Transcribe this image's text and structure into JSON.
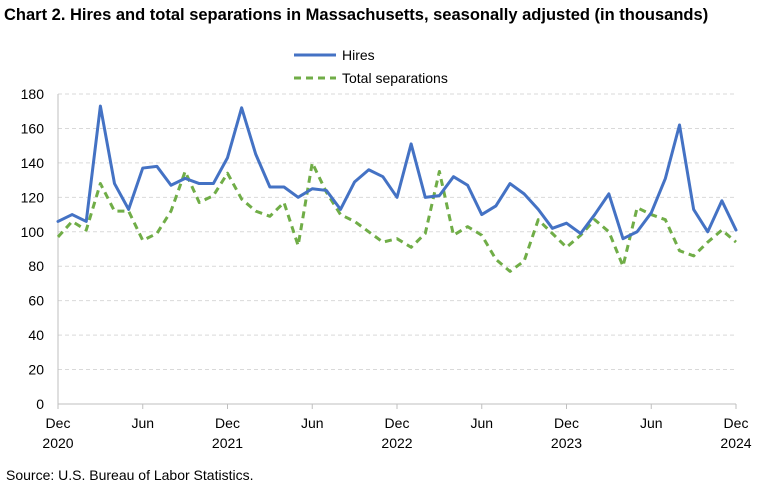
{
  "chart_data": {
    "type": "line",
    "title": "Chart 2. Hires and total separations in Massachusetts, seasonally adjusted (in thousands)",
    "source": "Source: U.S. Bureau of Labor Statistics.",
    "xlabel": "",
    "ylabel": "",
    "ylim": [
      0,
      180
    ],
    "yticks": [
      0,
      20,
      40,
      60,
      80,
      100,
      120,
      140,
      160,
      180
    ],
    "grid": true,
    "legend_position": "top-center",
    "x_ticks": [
      {
        "index": 0,
        "month": "Dec",
        "year": "2020"
      },
      {
        "index": 6,
        "month": "Jun",
        "year": ""
      },
      {
        "index": 12,
        "month": "Dec",
        "year": "2021"
      },
      {
        "index": 18,
        "month": "Jun",
        "year": ""
      },
      {
        "index": 24,
        "month": "Dec",
        "year": "2022"
      },
      {
        "index": 30,
        "month": "Jun",
        "year": ""
      },
      {
        "index": 36,
        "month": "Dec",
        "year": "2023"
      },
      {
        "index": 42,
        "month": "Jun",
        "year": ""
      },
      {
        "index": 48,
        "month": "Dec",
        "year": "2024"
      }
    ],
    "series": [
      {
        "name": "Hires",
        "color": "#4472c4",
        "dash": "solid",
        "values": [
          106,
          110,
          106,
          173,
          128,
          113,
          137,
          138,
          127,
          131,
          128,
          128,
          143,
          172,
          145,
          126,
          126,
          120,
          125,
          124,
          113,
          129,
          136,
          132,
          120,
          151,
          120,
          121,
          132,
          127,
          110,
          115,
          128,
          122,
          113,
          102,
          105,
          99,
          110,
          122,
          96,
          100,
          111,
          131,
          162,
          113,
          100,
          118,
          101
        ]
      },
      {
        "name": "Total separations",
        "color": "#70ad47",
        "dash": "dashed",
        "values": [
          97,
          106,
          101,
          128,
          112,
          112,
          95,
          99,
          112,
          135,
          117,
          121,
          134,
          119,
          112,
          109,
          117,
          92,
          140,
          123,
          110,
          106,
          100,
          94,
          96,
          91,
          99,
          135,
          98,
          103,
          98,
          84,
          77,
          83,
          107,
          99,
          91,
          98,
          107,
          100,
          80,
          114,
          110,
          107,
          89,
          86,
          94,
          101,
          94
        ]
      }
    ]
  }
}
